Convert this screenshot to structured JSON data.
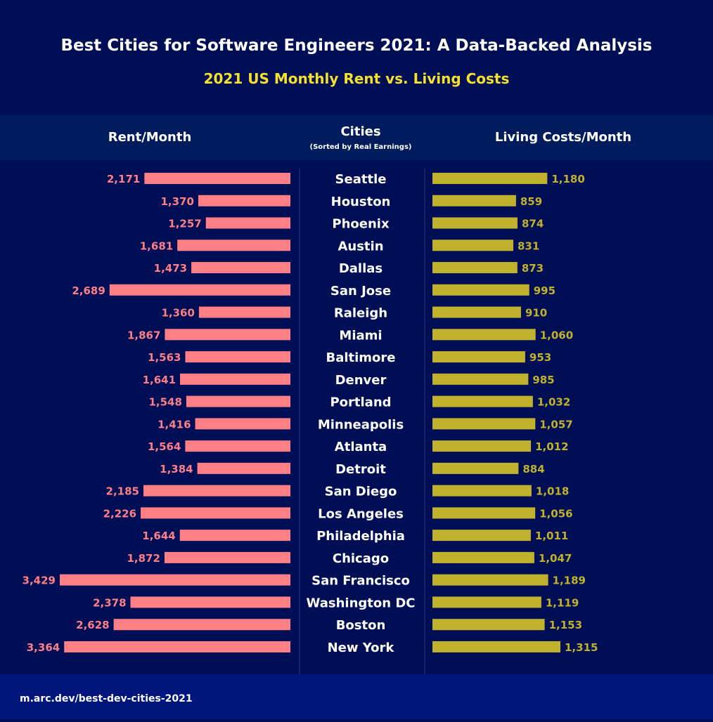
{
  "title": "Best Cities for Software Engineers 2021: A Data-Backed Analysis",
  "subtitle": "2021 US Monthly Rent vs. Living Costs",
  "footer": "m.arc.dev/best-dev-cities-2021",
  "colors": {
    "background": "#000f55",
    "header_band": "#001c5c",
    "footer_band": "#00167d",
    "rent": "#ff7f87",
    "living": "#c0b22c",
    "subtitle": "#f5e030",
    "text": "#ffffff"
  },
  "chart_data": {
    "type": "bar",
    "orientation": "horizontal-butterfly",
    "column_headers": {
      "left": "Rent/Month",
      "center": "Cities",
      "center_note": "(Sorted by Real Earnings)",
      "right": "Living Costs/Month"
    },
    "categories": [
      "Seattle",
      "Houston",
      "Phoenix",
      "Austin",
      "Dallas",
      "San Jose",
      "Raleigh",
      "Miami",
      "Baltimore",
      "Denver",
      "Portland",
      "Minneapolis",
      "Atlanta",
      "Detroit",
      "San Diego",
      "Los Angeles",
      "Philadelphia",
      "Chicago",
      "San Francisco",
      "Washington DC",
      "Boston",
      "New York"
    ],
    "series": [
      {
        "name": "Rent/Month",
        "values": [
          2171,
          1370,
          1257,
          1681,
          1473,
          2689,
          1360,
          1867,
          1563,
          1641,
          1548,
          1416,
          1564,
          1384,
          2185,
          2226,
          1644,
          1872,
          3429,
          2378,
          2628,
          3364
        ]
      },
      {
        "name": "Living Costs/Month",
        "values": [
          1180,
          859,
          874,
          831,
          873,
          995,
          910,
          1060,
          953,
          985,
          1032,
          1057,
          1012,
          884,
          1018,
          1056,
          1011,
          1047,
          1189,
          1119,
          1153,
          1315
        ]
      }
    ]
  }
}
